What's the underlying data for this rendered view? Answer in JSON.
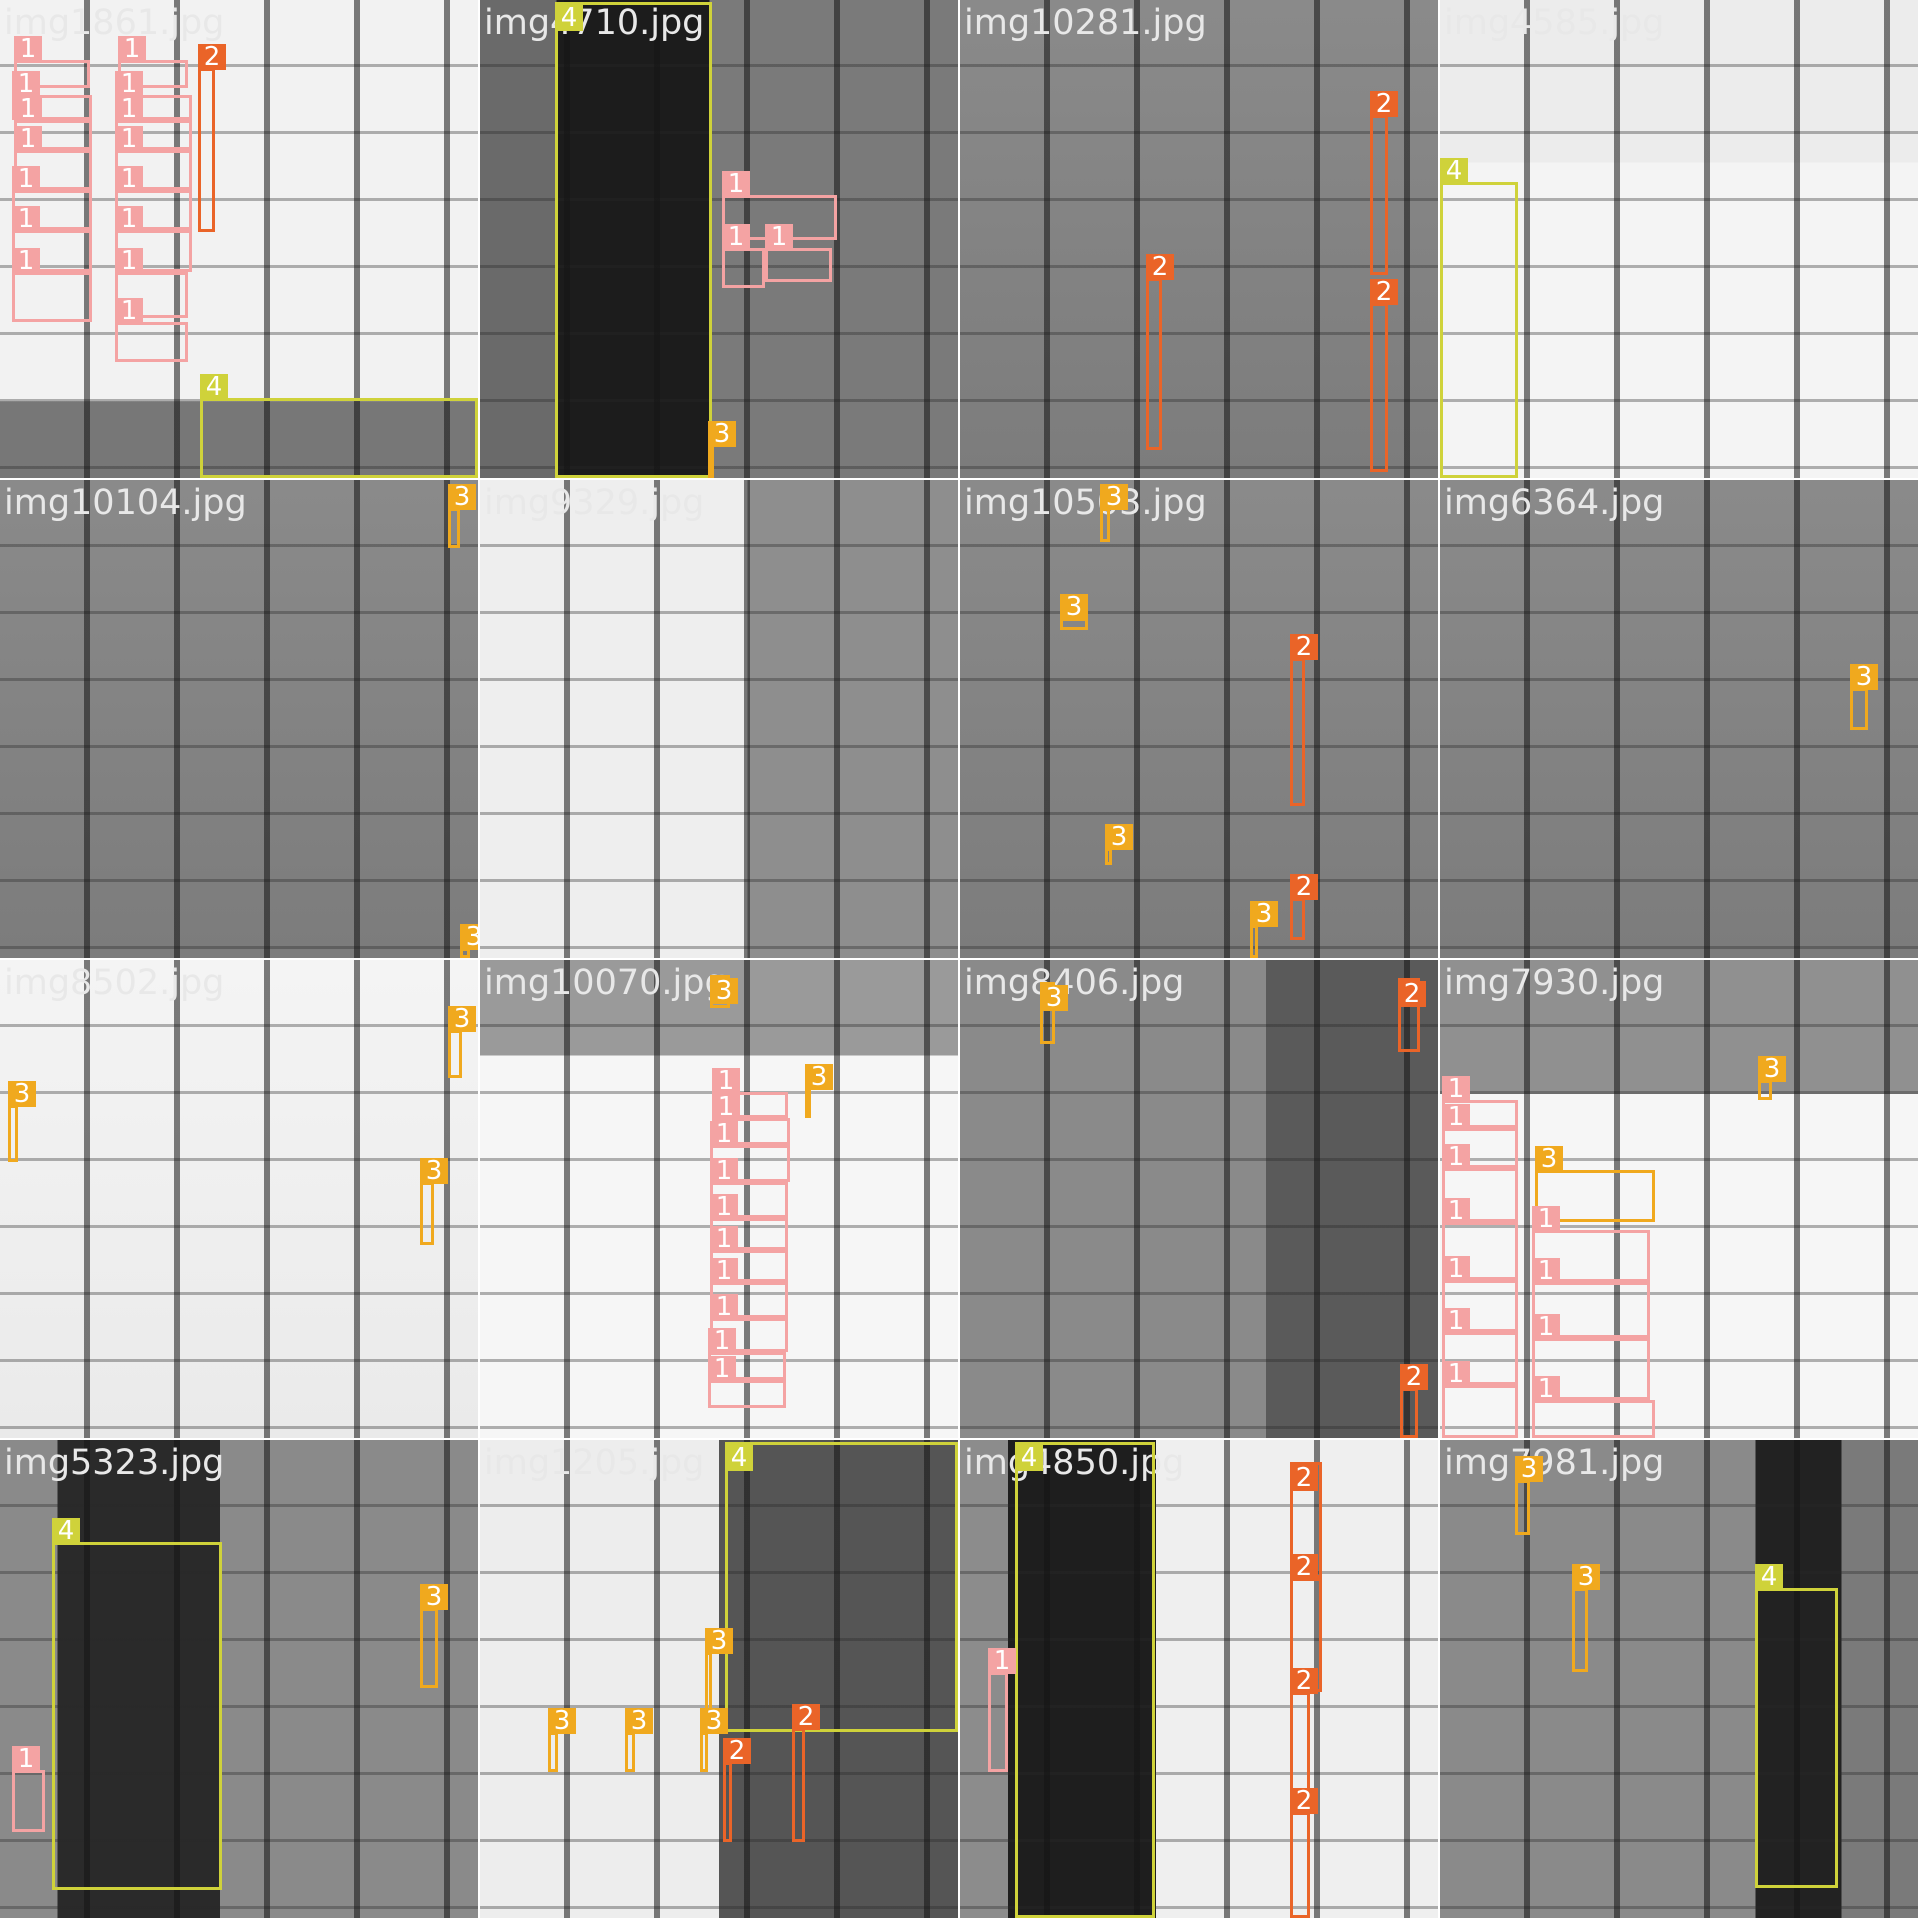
{
  "class_colors": {
    "1": "#f4a3a3",
    "2": "#ea6428",
    "3": "#f0a91e",
    "4": "#cfd23a"
  },
  "tiles": [
    {
      "name": "img1861.jpg",
      "theme": "bright-left-dark-bottom",
      "boxes": [
        [
          1,
          14,
          60,
          90,
          88
        ],
        [
          1,
          12,
          95,
          92,
          120
        ],
        [
          1,
          14,
          120,
          92,
          150
        ],
        [
          1,
          14,
          150,
          92,
          190
        ],
        [
          1,
          12,
          190,
          92,
          230
        ],
        [
          1,
          12,
          230,
          92,
          272
        ],
        [
          1,
          12,
          272,
          92,
          322
        ],
        [
          1,
          118,
          60,
          188,
          88
        ],
        [
          1,
          115,
          95,
          192,
          120
        ],
        [
          1,
          115,
          120,
          192,
          150
        ],
        [
          1,
          115,
          150,
          192,
          190
        ],
        [
          1,
          115,
          190,
          192,
          230
        ],
        [
          1,
          115,
          230,
          192,
          272
        ],
        [
          1,
          115,
          272,
          188,
          318
        ],
        [
          1,
          115,
          322,
          188,
          362
        ],
        [
          2,
          198,
          68,
          215,
          232
        ],
        [
          4,
          200,
          398,
          478,
          478
        ]
      ]
    },
    {
      "name": "img4710.jpg",
      "theme": "dark-column",
      "boxes": [
        [
          4,
          75,
          2,
          232,
          478
        ],
        [
          3,
          228,
          445,
          232,
          478
        ],
        [
          1,
          242,
          195,
          357,
          240
        ],
        [
          1,
          242,
          248,
          285,
          288
        ],
        [
          1,
          285,
          248,
          352,
          282
        ]
      ]
    },
    {
      "name": "img10281.jpg",
      "theme": "gray-grid",
      "boxes": [
        [
          2,
          186,
          278,
          202,
          450
        ],
        [
          2,
          410,
          115,
          428,
          275
        ],
        [
          2,
          410,
          303,
          428,
          472
        ]
      ]
    },
    {
      "name": "img4585.jpg",
      "theme": "bright-with-dark-patch",
      "boxes": [
        [
          4,
          0,
          182,
          78,
          478
        ]
      ]
    },
    {
      "name": "img10104.jpg",
      "theme": "gray-grid",
      "boxes": [
        [
          3,
          448,
          28,
          460,
          68
        ],
        [
          3,
          460,
          468,
          470,
          478
        ]
      ]
    },
    {
      "name": "img9329.jpg",
      "theme": "bright-left-gray-right",
      "boxes": []
    },
    {
      "name": "img10503.jpg",
      "theme": "gray-grid",
      "boxes": [
        [
          3,
          140,
          28,
          150,
          62
        ],
        [
          3,
          100,
          138,
          128,
          150
        ],
        [
          2,
          330,
          178,
          345,
          326
        ],
        [
          3,
          145,
          368,
          152,
          385
        ],
        [
          3,
          290,
          445,
          298,
          478
        ],
        [
          2,
          330,
          418,
          345,
          460
        ]
      ]
    },
    {
      "name": "img6364.jpg",
      "theme": "gray-grid",
      "boxes": [
        [
          3,
          410,
          208,
          428,
          250
        ]
      ]
    },
    {
      "name": "img8502.jpg",
      "theme": "bright",
      "boxes": [
        [
          3,
          448,
          70,
          462,
          118
        ],
        [
          3,
          8,
          145,
          18,
          202
        ],
        [
          3,
          420,
          222,
          434,
          285
        ]
      ]
    },
    {
      "name": "img10070.jpg",
      "theme": "bright-mixed",
      "boxes": [
        [
          3,
          230,
          15,
          250,
          48
        ],
        [
          3,
          325,
          128,
          330,
          158
        ],
        [
          1,
          232,
          132,
          308,
          158
        ],
        [
          1,
          232,
          158,
          310,
          185
        ],
        [
          1,
          230,
          185,
          310,
          222
        ],
        [
          1,
          230,
          222,
          308,
          258
        ],
        [
          1,
          230,
          258,
          308,
          290
        ],
        [
          1,
          230,
          290,
          308,
          322
        ],
        [
          1,
          230,
          322,
          308,
          358
        ],
        [
          1,
          230,
          358,
          308,
          392
        ],
        [
          1,
          228,
          392,
          306,
          420
        ],
        [
          1,
          228,
          420,
          306,
          448
        ]
      ]
    },
    {
      "name": "img8406.jpg",
      "theme": "gray-dark-right",
      "boxes": [
        [
          3,
          80,
          22,
          95,
          84
        ],
        [
          2,
          438,
          18,
          460,
          92
        ],
        [
          2,
          440,
          428,
          458,
          478
        ]
      ]
    },
    {
      "name": "img7930.jpg",
      "theme": "gray-top-bright-bottom",
      "boxes": [
        [
          3,
          318,
          120,
          332,
          140
        ],
        [
          1,
          2,
          140,
          78,
          168
        ],
        [
          1,
          2,
          168,
          78,
          208
        ],
        [
          1,
          2,
          208,
          78,
          262
        ],
        [
          1,
          2,
          262,
          78,
          320
        ],
        [
          1,
          2,
          320,
          78,
          372
        ],
        [
          1,
          2,
          372,
          78,
          425
        ],
        [
          1,
          2,
          425,
          78,
          478
        ],
        [
          3,
          95,
          210,
          215,
          262
        ],
        [
          1,
          92,
          270,
          210,
          322
        ],
        [
          1,
          92,
          322,
          210,
          378
        ],
        [
          1,
          92,
          378,
          210,
          440
        ],
        [
          1,
          92,
          440,
          215,
          478
        ]
      ]
    },
    {
      "name": "img5323.jpg",
      "theme": "dark-column-gray",
      "boxes": [
        [
          4,
          52,
          102,
          222,
          450
        ],
        [
          3,
          420,
          168,
          438,
          248
        ],
        [
          1,
          12,
          330,
          45,
          392
        ]
      ]
    },
    {
      "name": "img1205.jpg",
      "theme": "bright-with-dark-panel",
      "boxes": [
        [
          4,
          245,
          2,
          478,
          292
        ],
        [
          3,
          225,
          212,
          232,
          272
        ],
        [
          3,
          68,
          292,
          78,
          332
        ],
        [
          3,
          145,
          292,
          155,
          332
        ],
        [
          3,
          220,
          292,
          228,
          332
        ],
        [
          2,
          243,
          322,
          252,
          402
        ],
        [
          2,
          312,
          288,
          325,
          402
        ]
      ]
    },
    {
      "name": "img4850.jpg",
      "theme": "dark-column-bright-right",
      "boxes": [
        [
          4,
          55,
          2,
          195,
          478
        ],
        [
          1,
          28,
          232,
          48,
          332
        ],
        [
          2,
          330,
          22,
          362,
          138
        ],
        [
          2,
          330,
          138,
          362,
          252
        ],
        [
          2,
          330,
          252,
          350,
          372
        ],
        [
          2,
          330,
          372,
          350,
          478
        ]
      ]
    },
    {
      "name": "img7981.jpg",
      "theme": "gray-with-dark-right",
      "boxes": [
        [
          3,
          75,
          40,
          90,
          95
        ],
        [
          4,
          315,
          148,
          398,
          448
        ],
        [
          3,
          132,
          148,
          148,
          232
        ]
      ]
    }
  ]
}
